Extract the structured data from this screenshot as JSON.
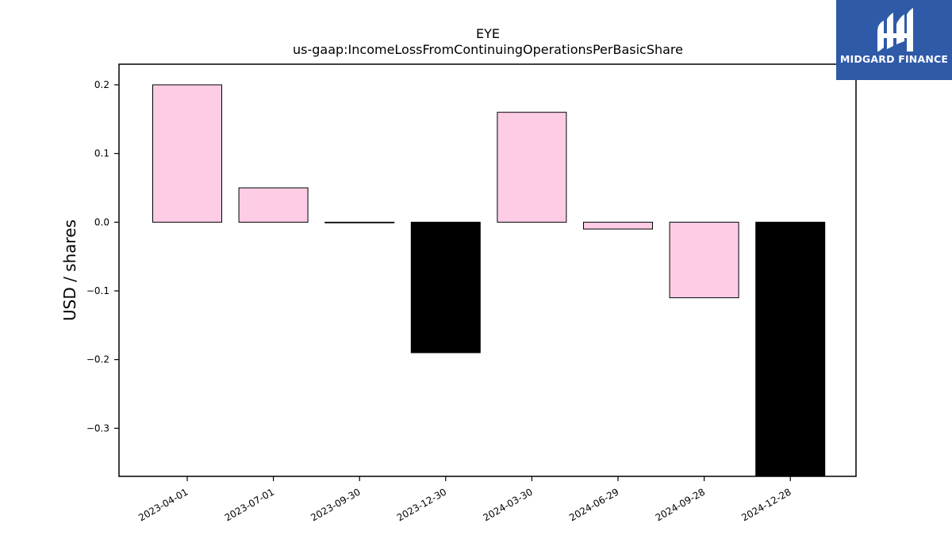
{
  "logo": {
    "text": "MIDGARD FINANCE",
    "background": "#2f5aa8"
  },
  "chart_data": {
    "type": "bar",
    "title": "EYE",
    "subtitle": "us-gaap:IncomeLossFromContinuingOperationsPerBasicShare",
    "xlabel": "",
    "ylabel": "USD / shares",
    "categories": [
      "2023-04-01",
      "2023-07-01",
      "2023-09-30",
      "2023-12-30",
      "2024-03-30",
      "2024-06-29",
      "2024-09-28",
      "2024-12-28"
    ],
    "values": [
      0.2,
      0.05,
      0.0,
      -0.19,
      0.16,
      -0.01,
      -0.11,
      -0.37
    ],
    "colors": [
      "#ffccе6",
      "#ffcce6",
      "#ffcce6",
      "#000000",
      "#ffcce6",
      "#ffcce6",
      "#ffcce6",
      "#000000"
    ],
    "yticks": [
      0.2,
      0.1,
      0.0,
      -0.1,
      -0.2,
      -0.3
    ],
    "ytick_labels": [
      "0.2",
      "0.1",
      "0.0",
      "−0.1",
      "−0.2",
      "−0.3"
    ],
    "ylim": [
      -0.37,
      0.23
    ],
    "grid": false
  }
}
